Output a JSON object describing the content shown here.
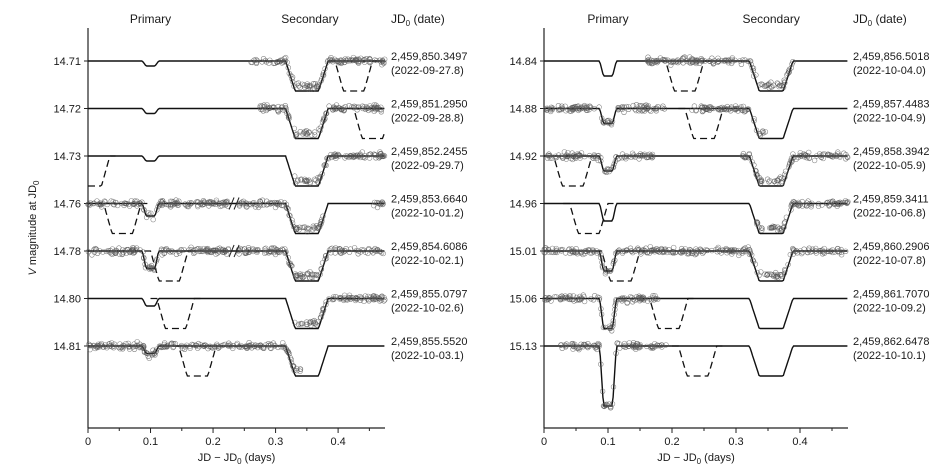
{
  "chart_data": [
    {
      "type": "scatter",
      "panel": "left",
      "col_primary": "Primary",
      "col_secondary": "Secondary",
      "col_date": "JD",
      "col_date_sub": "0",
      "col_date_suffix": " (date)",
      "ylabel_italic": "V",
      "ylabel_rest": " magnitude at JD",
      "ylabel_sub": "0",
      "xlabel_main": "JD − JD",
      "xlabel_sub": "0",
      "xlabel_unit": " (days)",
      "xlim": [
        0,
        0.475
      ],
      "xticks": [
        "0",
        "0.1",
        "0.2",
        "0.3",
        "0.4"
      ],
      "xtick_values": [
        0,
        0.1,
        0.2,
        0.3,
        0.4
      ],
      "secondary_eclipse": {
        "center": 0.35,
        "half_width": 0.034,
        "depth_mag": 0.06
      },
      "rows": [
        {
          "mag": "14.71",
          "jd": "2,459,850.3497",
          "date": "(2022-09-27.8)",
          "data_ranges": [
            [
              0.26,
              0.475
            ]
          ],
          "break": false,
          "dashed_dip_center": 0.425,
          "primary_dip_depth": 0.01
        },
        {
          "mag": "14.72",
          "jd": "2,459,851.2950",
          "date": "(2022-09-28.8)",
          "data_ranges": [
            [
              0.275,
              0.475
            ]
          ],
          "break": false,
          "dashed_dip_center": 0.455,
          "primary_dip_depth": 0.01
        },
        {
          "mag": "14.73",
          "jd": "2,459,852.2455",
          "date": "(2022-09-29.7)",
          "data_ranges": [
            [
              0.33,
              0.475
            ]
          ],
          "break": false,
          "dashed_dip_center": 0.005,
          "primary_dip_depth": 0.01
        },
        {
          "mag": "14.76",
          "jd": "2,459,853.6640",
          "date": "(2022-10-01.2)",
          "data_ranges": [
            [
              0.0,
              0.225
            ],
            [
              0.24,
              0.38
            ],
            [
              0.455,
              0.475
            ]
          ],
          "break": true,
          "dashed_dip_center": 0.055,
          "primary_dip_depth": 0.025
        },
        {
          "mag": "14.78",
          "jd": "2,459,854.6086",
          "date": "(2022-10-02.1)",
          "data_ranges": [
            [
              0.0,
              0.225
            ],
            [
              0.24,
              0.475
            ]
          ],
          "break": true,
          "dashed_dip_center": 0.13,
          "primary_dip_depth": 0.035
        },
        {
          "mag": "14.80",
          "jd": "2,459,855.0797",
          "date": "(2022-10-02.6)",
          "data_ranges": [
            [
              0.33,
              0.475
            ]
          ],
          "break": false,
          "dashed_dip_center": 0.14,
          "primary_dip_depth": 0.015
        },
        {
          "mag": "14.81",
          "jd": "2,459,855.5520",
          "date": "(2022-10-03.1)",
          "data_ranges": [
            [
              0.0,
              0.34
            ]
          ],
          "break": false,
          "dashed_dip_center": 0.175,
          "primary_dip_depth": 0.015
        }
      ]
    },
    {
      "type": "scatter",
      "panel": "right",
      "col_primary": "Primary",
      "col_secondary": "Secondary",
      "col_date": "JD",
      "col_date_sub": "0",
      "col_date_suffix": " (date)",
      "xlabel_main": "JD − JD",
      "xlabel_sub": "0",
      "xlabel_unit": " (days)",
      "xlim": [
        0,
        0.475
      ],
      "xticks": [
        "0",
        "0.1",
        "0.2",
        "0.3",
        "0.4"
      ],
      "xtick_values": [
        0,
        0.1,
        0.2,
        0.3,
        0.4
      ],
      "secondary_eclipse": {
        "center": 0.355,
        "half_width": 0.034,
        "depth_mag": 0.06
      },
      "rows": [
        {
          "mag": "14.84",
          "jd": "2,459,856.5018",
          "date": "(2022-10-04.0)",
          "data_ranges": [
            [
              0.16,
              0.39
            ]
          ],
          "break": false,
          "dashed_dip_center": 0.22,
          "primary_dip_depth": 0.03
        },
        {
          "mag": "14.88",
          "jd": "2,459,857.4483",
          "date": "(2022-10-04.9)",
          "data_ranges": [
            [
              0.0,
              0.19
            ],
            [
              0.23,
              0.35
            ]
          ],
          "break": false,
          "dashed_dip_center": 0.25,
          "primary_dip_depth": 0.03
        },
        {
          "mag": "14.92",
          "jd": "2,459,858.3942",
          "date": "(2022-10-05.9)",
          "data_ranges": [
            [
              0.0,
              0.17
            ],
            [
              0.31,
              0.475
            ]
          ],
          "break": false,
          "dashed_dip_center": 0.045,
          "primary_dip_depth": 0.03
        },
        {
          "mag": "14.96",
          "jd": "2,459,859.3411",
          "date": "(2022-10-06.8)",
          "data_ranges": [
            [
              0.33,
              0.475
            ]
          ],
          "break": false,
          "dashed_dip_center": 0.07,
          "primary_dip_depth": 0.035
        },
        {
          "mag": "15.01",
          "jd": "2,459,860.2906",
          "date": "(2022-10-07.8)",
          "data_ranges": [
            [
              0.0,
              0.475
            ]
          ],
          "break": false,
          "dashed_dip_center": 0.12,
          "primary_dip_depth": 0.04
        },
        {
          "mag": "15.06",
          "jd": "2,459,861.7070",
          "date": "(2022-10-09.2)",
          "data_ranges": [
            [
              0.0,
              0.18
            ]
          ],
          "break": false,
          "dashed_dip_center": 0.195,
          "primary_dip_depth": 0.06
        },
        {
          "mag": "15.13",
          "jd": "2,459,862.6478",
          "date": "(2022-10-10.1)",
          "data_ranges": [
            [
              0.025,
              0.195
            ]
          ],
          "break": false,
          "dashed_dip_center": 0.24,
          "primary_dip_depth": 0.12
        }
      ]
    }
  ]
}
